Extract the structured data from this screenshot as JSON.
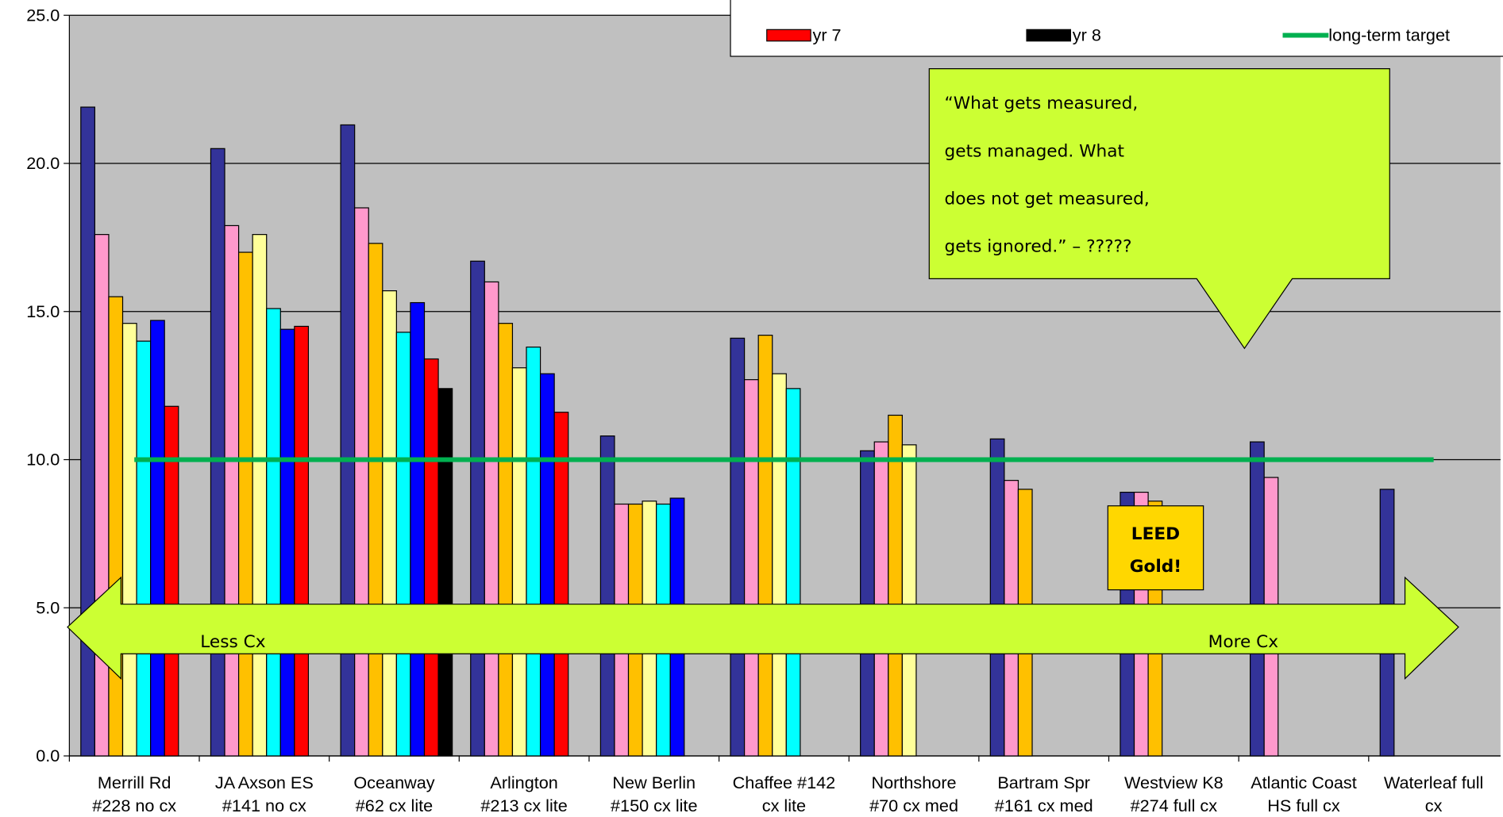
{
  "chart_data": {
    "type": "bar",
    "categories": [
      "Merrill Rd\n#228 no cx",
      "JA Axson ES\n#141 no cx",
      "Oceanway\n#62 cx lite",
      "Arlington\n#213 cx lite",
      "New Berlin\n#150 cx lite",
      "Chaffee #142\ncx lite",
      "Northshore\n#70 cx med",
      "Bartram Spr\n#161 cx med",
      "Westview K8\n#274 full cx",
      "Atlantic Coast\nHS  full cx",
      "Waterleaf full\ncx"
    ],
    "series": [
      {
        "color": "#333399",
        "values": [
          21.9,
          20.5,
          21.3,
          16.7,
          10.8,
          14.1,
          10.3,
          10.7,
          8.9,
          10.6,
          9.0
        ]
      },
      {
        "color": "#FF99CC",
        "values": [
          17.6,
          17.9,
          18.5,
          16.0,
          8.5,
          12.7,
          10.6,
          9.3,
          8.9,
          9.4,
          null
        ]
      },
      {
        "color": "#FFC000",
        "values": [
          15.5,
          17.0,
          17.3,
          14.6,
          8.5,
          14.2,
          11.5,
          9.0,
          8.6,
          null,
          null
        ]
      },
      {
        "color": "#FFFF99",
        "values": [
          14.6,
          17.6,
          15.7,
          13.1,
          8.6,
          12.9,
          10.5,
          null,
          null,
          null,
          null
        ]
      },
      {
        "color": "#00FFFF",
        "values": [
          14.0,
          15.1,
          14.3,
          13.8,
          8.5,
          12.4,
          null,
          null,
          null,
          null,
          null
        ]
      },
      {
        "color": "#0000FF",
        "values": [
          14.7,
          14.4,
          15.3,
          12.9,
          8.7,
          null,
          null,
          null,
          null,
          null,
          null
        ]
      },
      {
        "name": "yr 7",
        "color": "#FF0000",
        "values": [
          11.8,
          14.5,
          13.4,
          11.6,
          null,
          null,
          null,
          null,
          null,
          null,
          null
        ]
      },
      {
        "name": "yr 8",
        "color": "#000000",
        "values": [
          null,
          null,
          12.4,
          null,
          null,
          null,
          null,
          null,
          null,
          null,
          null
        ]
      },
      {
        "name": "long-term target",
        "color": "#00B050",
        "kind": "line",
        "values": [
          10,
          10,
          10,
          10,
          10,
          10,
          10,
          10,
          10,
          10,
          10
        ]
      }
    ],
    "ylim": [
      0,
      25
    ],
    "yticks": [
      {
        "value": 0,
        "label": "0.0"
      },
      {
        "value": 5,
        "label": "5.0"
      },
      {
        "value": 10,
        "label": "10.0"
      },
      {
        "value": 15,
        "label": "15.0"
      },
      {
        "value": 20,
        "label": "20.0"
      },
      {
        "value": 25,
        "label": "25.0"
      }
    ],
    "grid": true,
    "legend": "top-right",
    "annotations": {
      "quote": [
        "“What gets measured,",
        "gets managed.  What",
        "does not get measured,",
        "gets ignored.” – ?????"
      ],
      "leed": [
        "LEED",
        "Gold!"
      ],
      "less": "Less Cx",
      "more": "More Cx"
    }
  }
}
